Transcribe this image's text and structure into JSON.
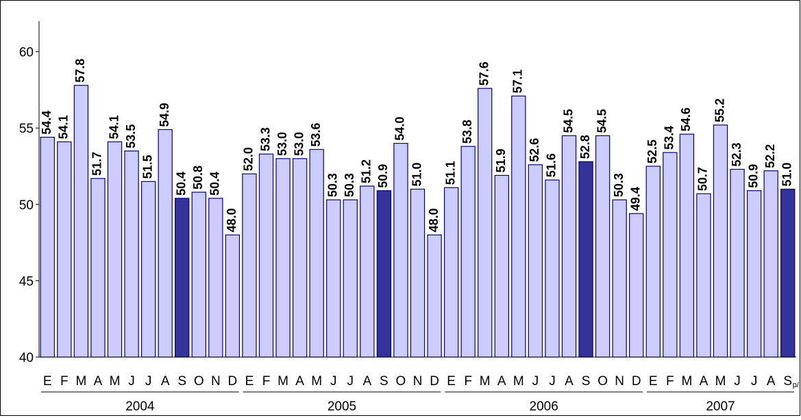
{
  "chart_data": {
    "type": "bar",
    "categories": [
      "E",
      "F",
      "M",
      "A",
      "M",
      "J",
      "J",
      "A",
      "S",
      "O",
      "N",
      "D",
      "E",
      "F",
      "M",
      "A",
      "M",
      "J",
      "J",
      "A",
      "S",
      "O",
      "N",
      "D",
      "E",
      "F",
      "M",
      "A",
      "M",
      "J",
      "J",
      "A",
      "S",
      "O",
      "N",
      "D",
      "E",
      "F",
      "M",
      "A",
      "M",
      "J",
      "J",
      "A",
      "S"
    ],
    "category_note": "p/",
    "groups": [
      "2004",
      "2005",
      "2006",
      "2007"
    ],
    "values": [
      54.4,
      54.1,
      57.8,
      51.7,
      54.1,
      53.5,
      51.5,
      54.9,
      50.4,
      50.8,
      50.4,
      48.0,
      52.0,
      53.3,
      53.0,
      53.0,
      53.6,
      50.3,
      50.3,
      51.2,
      50.9,
      54.0,
      51.0,
      48.0,
      51.1,
      53.8,
      57.6,
      51.9,
      57.1,
      52.6,
      51.6,
      54.5,
      52.8,
      54.5,
      50.3,
      49.4,
      52.5,
      53.4,
      54.6,
      50.7,
      55.2,
      52.3,
      50.9,
      52.2,
      51.0
    ],
    "value_labels": [
      "54.4",
      "54.1",
      "57.8",
      "51.7",
      "54.1",
      "53.5",
      "51.5",
      "54.9",
      "50.4",
      "50.8",
      "50.4",
      "48.0",
      "52.0",
      "53.3",
      "53.0",
      "53.0",
      "53.6",
      "50.3",
      "50.3",
      "51.2",
      "50.9",
      "54.0",
      "51.0",
      "48.0",
      "51.1",
      "53.8",
      "57.6",
      "51.9",
      "57.1",
      "52.6",
      "51.6",
      "54.5",
      "52.8",
      "54.5",
      "50.3",
      "49.4",
      "52.5",
      "53.4",
      "54.6",
      "50.7",
      "55.2",
      "52.3",
      "50.9",
      "52.2",
      "51.0"
    ],
    "color": "#ccccff",
    "highlight_color": "#333399",
    "highlight_category": "S",
    "ylim": [
      40,
      62
    ],
    "yticks": [
      40,
      45,
      50,
      55,
      60
    ],
    "grid": false
  }
}
